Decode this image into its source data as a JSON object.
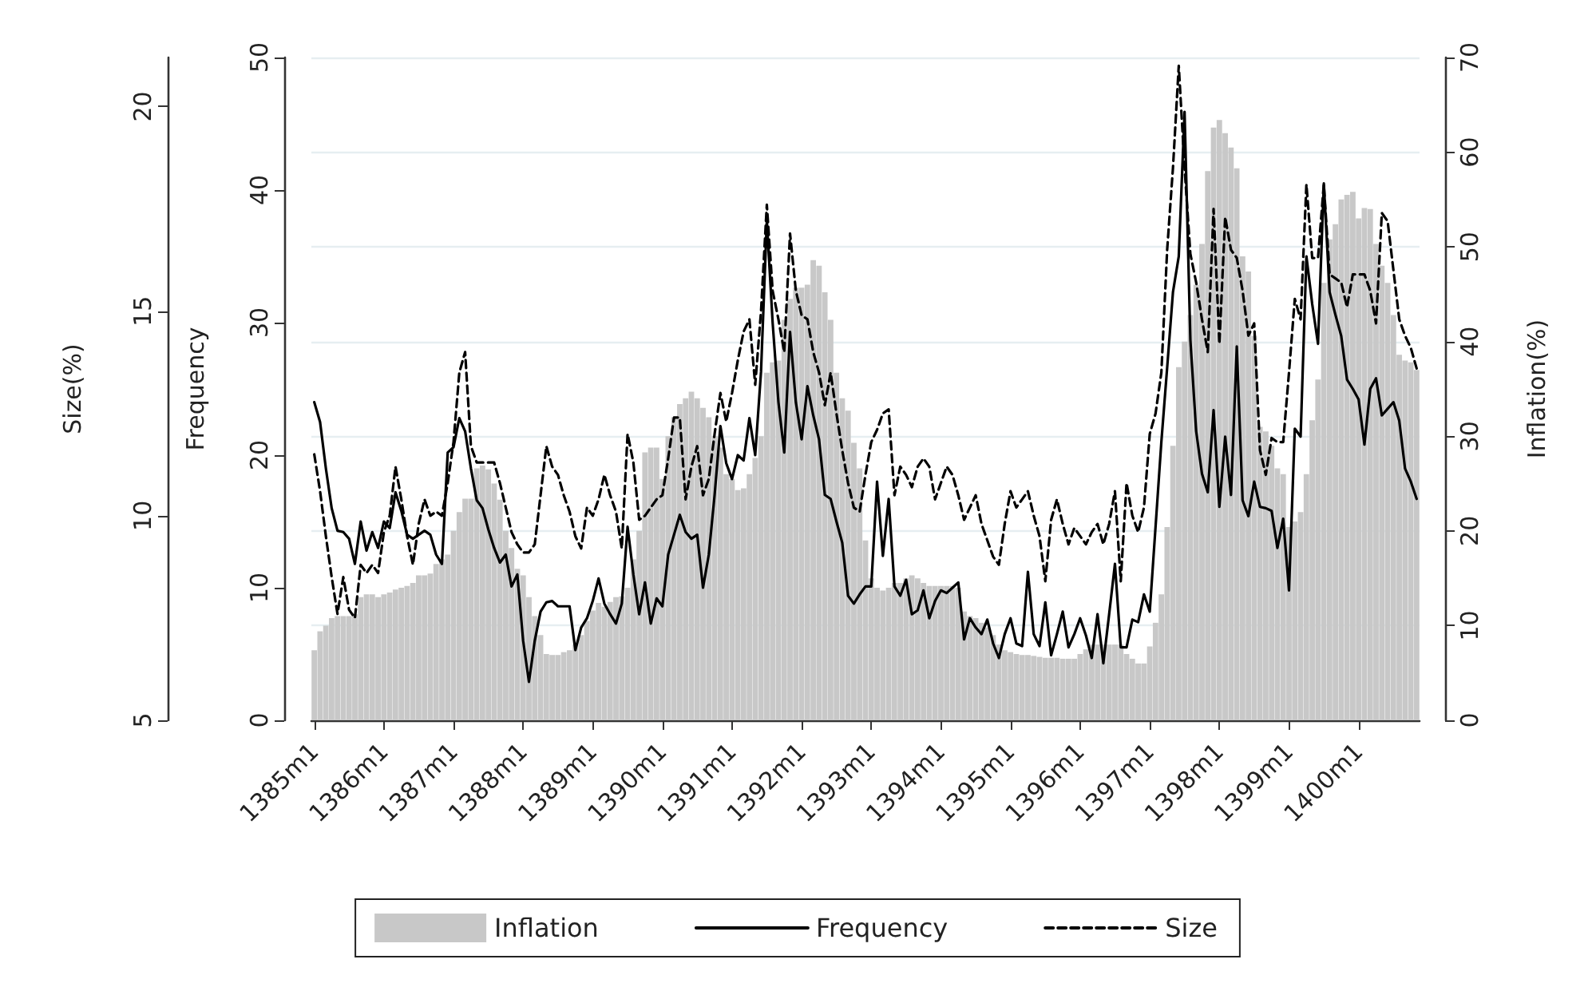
{
  "chart_data": {
    "type": "bar",
    "ylabel": "Inflation(%)",
    "y2label": "Frequency",
    "y3label": "Size(%)",
    "categories": [
      "1385m1",
      null,
      null,
      null,
      null,
      null,
      null,
      null,
      null,
      null,
      null,
      null,
      "1386m1",
      null,
      null,
      null,
      null,
      null,
      null,
      null,
      null,
      null,
      null,
      null,
      "1387m1",
      null,
      null,
      null,
      null,
      null,
      null,
      null,
      null,
      null,
      null,
      null,
      "1388m1",
      null,
      null,
      null,
      null,
      null,
      null,
      null,
      null,
      null,
      null,
      null,
      "1389m1",
      null,
      null,
      null,
      null,
      null,
      null,
      null,
      null,
      null,
      null,
      null,
      "1390m1",
      null,
      null,
      null,
      null,
      null,
      null,
      null,
      null,
      null,
      null,
      null,
      "1391m1",
      null,
      null,
      null,
      null,
      null,
      null,
      null,
      null,
      null,
      null,
      null,
      "1392m1",
      null,
      null,
      null,
      null,
      null,
      null,
      null,
      null,
      null,
      null,
      null,
      "1393m1",
      null,
      null,
      null,
      null,
      null,
      null,
      null,
      null,
      null,
      null,
      null,
      "1394m1",
      null,
      null,
      null,
      null,
      null,
      null,
      null,
      null,
      null,
      null,
      null,
      "1395m1",
      null,
      null,
      null,
      null,
      null,
      null,
      null,
      null,
      null,
      null,
      null,
      "1396m1",
      null,
      null,
      null,
      null,
      null,
      null,
      null,
      null,
      null,
      null,
      null,
      "1397m1",
      null,
      null,
      null,
      null,
      null,
      null,
      null,
      null,
      null,
      null,
      null,
      "1398m1",
      null,
      null,
      null,
      null,
      null,
      null,
      null,
      null,
      null,
      null,
      null,
      "1399m1",
      null,
      null,
      null,
      null,
      null,
      null,
      null,
      null,
      null,
      null,
      null,
      "1400m1",
      null,
      null,
      null,
      null,
      null,
      null,
      null,
      null,
      null,
      null
    ],
    "series": [
      {
        "name": "Inflation",
        "color": "#c8c8c8",
        "values": [
          7.4,
          9.4,
          10,
          10.8,
          11,
          11,
          11,
          11.2,
          13,
          13.3,
          13.3,
          13,
          13.3,
          13.5,
          13.8,
          14,
          14.2,
          14.5,
          15.3,
          15.3,
          15.5,
          16.5,
          17,
          17.5,
          20,
          22,
          23.4,
          23.4,
          26.6,
          26.9,
          26.5,
          25,
          23.3,
          20,
          18.2,
          16,
          15.3,
          13,
          11,
          9,
          7,
          6.9,
          6.9,
          7.2,
          7.4,
          8,
          9,
          10.5,
          11.6,
          12.4,
          12,
          12.5,
          13,
          13.1,
          14,
          17,
          20,
          28.3,
          28.8,
          28.8,
          25.5,
          30,
          32,
          33.4,
          34,
          34.7,
          34,
          33,
          32,
          30,
          28.8,
          26,
          25.5,
          24.3,
          24.5,
          26,
          27.7,
          30,
          36.7,
          37.8,
          38,
          42.3,
          44.5,
          45.7,
          45.7,
          46,
          48.6,
          48,
          45.2,
          42.3,
          36.7,
          34,
          32.7,
          29.3,
          26.6,
          19,
          15,
          14,
          13.7,
          14,
          14.5,
          14.5,
          15,
          15.3,
          15,
          14.5,
          14.2,
          14.2,
          14.2,
          14.2,
          14.2,
          14,
          11.5,
          11,
          10.8,
          10.3,
          9.8,
          9,
          8,
          7.4,
          7.2,
          7,
          6.9,
          6.9,
          6.8,
          6.7,
          6.6,
          6.6,
          6.6,
          6.5,
          6.5,
          6.5,
          7,
          7.5,
          8,
          8,
          8,
          8,
          8,
          8,
          7,
          6.5,
          6,
          6,
          7.8,
          10.3,
          13.3,
          20.4,
          29,
          37.3,
          40,
          42.8,
          46,
          50.3,
          58,
          62.6,
          63.4,
          62,
          60.5,
          58.3,
          49,
          47.4,
          40.6,
          31,
          30.5,
          29,
          26.6,
          26,
          20.4,
          21,
          22,
          26,
          31.7,
          36,
          46.2,
          50.8,
          52.4,
          55,
          55.5,
          55.8,
          53,
          54.1,
          54,
          50.3,
          48,
          46.2,
          42.8,
          38.6,
          38,
          37.8,
          37
        ]
      },
      {
        "name": "Frequency",
        "type": "line",
        "axis": "y2",
        "color": "#000000",
        "line_style": "solid",
        "values": [
          24,
          22.5,
          19,
          16,
          14.3,
          14.2,
          13.7,
          11.8,
          15,
          12.8,
          14.2,
          13,
          15,
          14.5,
          17.2,
          15.8,
          14,
          13.7,
          14,
          14.3,
          14,
          12.5,
          11.8,
          20.2,
          20.6,
          22.8,
          21.8,
          19,
          16.6,
          16,
          14.4,
          13,
          11.9,
          12.5,
          10.1,
          11,
          6,
          2.9,
          6,
          8.2,
          8.9,
          9,
          8.6,
          8.6,
          8.6,
          5.3,
          7,
          7.7,
          9,
          10.7,
          8.8,
          8,
          7.3,
          8.8,
          14.6,
          11,
          8,
          10.4,
          7.3,
          9.2,
          8.6,
          12.5,
          14,
          15.5,
          14.2,
          13.7,
          14,
          10,
          12.5,
          17,
          22.2,
          19.4,
          18.2,
          20,
          19.6,
          22.8,
          20,
          26.3,
          37.7,
          30,
          24,
          20.2,
          29.3,
          24,
          21.2,
          25.2,
          23,
          21.2,
          17,
          16.7,
          15,
          13.4,
          9.4,
          8.8,
          9.5,
          10.1,
          10.1,
          18,
          12.4,
          16.7,
          10.1,
          9.4,
          10.6,
          8,
          8.3,
          9.8,
          7.7,
          9,
          9.8,
          9.6,
          10,
          10.4,
          6.1,
          7.7,
          7,
          6.5,
          7.6,
          5.8,
          4.7,
          6.5,
          7.7,
          5.8,
          5.6,
          11.2,
          6.5,
          5.6,
          8.9,
          4.9,
          6.5,
          8.2,
          5.5,
          6.5,
          7.7,
          6.4,
          4.7,
          8,
          4.3,
          8,
          11.8,
          5.5,
          5.5,
          7.6,
          7.4,
          9.5,
          8.2,
          14.6,
          21,
          26.6,
          32.3,
          35,
          45.9,
          28.7,
          21.8,
          18.6,
          17.2,
          23.4,
          16.1,
          21.4,
          17,
          28.2,
          16.6,
          15.4,
          18,
          16.1,
          16,
          15.8,
          13,
          15.2,
          9.8,
          22,
          21.4,
          35,
          31.4,
          28.4,
          40.5,
          32.3,
          30.6,
          29,
          25.7,
          25,
          24.2,
          20.8,
          25,
          25.8,
          23,
          23.5,
          24,
          22.6,
          19,
          18,
          16.7
        ]
      },
      {
        "name": "Size",
        "type": "line",
        "axis": "y3",
        "color": "#000000",
        "line_style": "dashed",
        "values": [
          11.5,
          10.6,
          9.5,
          8.5,
          7.6,
          8.5,
          7.7,
          7.5,
          8.8,
          8.6,
          8.8,
          8.6,
          9.6,
          10,
          11.2,
          10.4,
          9.5,
          8.8,
          9.8,
          10.4,
          10,
          10.1,
          10,
          10.8,
          11.8,
          13.5,
          14,
          11.7,
          11.3,
          11.3,
          11.3,
          11.3,
          10.8,
          10.2,
          9.6,
          9.3,
          9.1,
          9.1,
          9.3,
          10.5,
          11.7,
          11.2,
          11,
          10.5,
          10.1,
          9.5,
          9.2,
          10.2,
          10,
          10.4,
          11,
          10.5,
          10.1,
          9.2,
          12,
          11.3,
          9.9,
          10,
          10.2,
          10.4,
          10.5,
          11.4,
          12.4,
          12.4,
          10.4,
          11.2,
          11.7,
          10.5,
          10.9,
          12,
          13,
          12.3,
          13,
          13.8,
          14.5,
          14.8,
          13.2,
          15,
          17.6,
          15.5,
          14.8,
          14,
          16.9,
          15.5,
          14.9,
          14.8,
          14,
          13.5,
          12.7,
          13.5,
          12.5,
          11.6,
          10.8,
          10.2,
          10.1,
          11,
          11.8,
          12.1,
          12.5,
          12.6,
          10.5,
          11.2,
          11,
          10.7,
          11.2,
          11.4,
          11.2,
          10.4,
          10.8,
          11.2,
          11,
          10.5,
          9.9,
          10.2,
          10.5,
          9.8,
          9.4,
          9,
          8.8,
          9.8,
          10.6,
          10.2,
          10.4,
          10.6,
          10,
          9.5,
          8.4,
          9.9,
          10.4,
          9.8,
          9.3,
          9.7,
          9.5,
          9.3,
          9.6,
          9.8,
          9.3,
          9.8,
          10.6,
          8.4,
          10.8,
          10,
          9.6,
          10.2,
          12,
          12.5,
          13.5,
          16.5,
          18.5,
          21,
          18.5,
          16.4,
          15.7,
          14.8,
          14,
          17.5,
          14.2,
          17.3,
          16.5,
          16.3,
          15.5,
          14.4,
          14.7,
          11.6,
          11,
          11.9,
          11.8,
          11.8,
          13.5,
          15.3,
          14.8,
          18.1,
          16.3,
          16.3,
          18.1,
          15.9,
          15.8,
          15.7,
          15.1,
          15.9,
          15.9,
          15.9,
          15.5,
          14.7,
          17.4,
          17.2,
          16,
          14.8,
          14.4,
          14.1,
          13.6
        ]
      }
    ],
    "ylim": [
      0,
      70
    ],
    "yticks": [
      0,
      10,
      20,
      30,
      40,
      50,
      60,
      70
    ],
    "y2lim": [
      0,
      50
    ],
    "y2ticks": [
      0,
      10,
      20,
      30,
      40,
      50
    ],
    "y3lim": [
      5,
      21.2
    ],
    "y3ticks": [
      5,
      10,
      15,
      20
    ],
    "grid": "y",
    "legend": "bottom",
    "marker": "none"
  }
}
